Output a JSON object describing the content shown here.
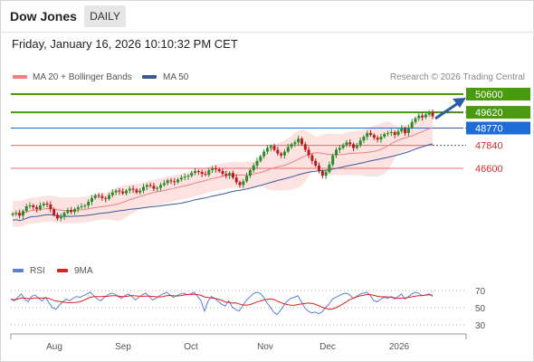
{
  "header": {
    "title": "Dow Jones",
    "timeframe_badge": "DAILY"
  },
  "timestamp": "Friday, January 16, 2026 10:10:32 PM CET",
  "legend": {
    "items": [
      {
        "label": "MA 20 + Bollinger Bands",
        "color": "#f08080"
      },
      {
        "label": "MA 50",
        "color": "#3b5998"
      }
    ],
    "credit": "Research © 2026 Trading Central"
  },
  "rsi_legend": {
    "items": [
      {
        "label": "RSI",
        "color": "#5b7fd6"
      },
      {
        "label": "9MA",
        "color": "#e02020"
      }
    ]
  },
  "colors": {
    "candle_up": "#2a8c2a",
    "candle_down": "#b81c1c",
    "resistance": "#4a9a10",
    "support": "#e07070",
    "pivot": "#1e6cd6",
    "ma20": "#f08080",
    "band_fill": "#fde2e2",
    "ma50": "#3b5998",
    "arrow": "#2b5aa8"
  },
  "chart_data": [
    {
      "type": "candlestick",
      "title": "Dow Jones",
      "timeframe": "DAILY",
      "x_ticks": [
        "Aug",
        "Sep",
        "Oct",
        "Nov",
        "Dec",
        "2026"
      ],
      "price_levels": [
        {
          "value": 50600,
          "label": "50600",
          "kind": "resistance"
        },
        {
          "value": 49620,
          "label": "49620",
          "kind": "resistance"
        },
        {
          "value": 48770,
          "label": "48770",
          "kind": "pivot"
        },
        {
          "value": 47840,
          "label": "47840",
          "kind": "support"
        },
        {
          "value": 46600,
          "label": "46600",
          "kind": "support"
        }
      ],
      "series": [
        {
          "name": "MA 20 + Bollinger Bands"
        },
        {
          "name": "MA 50"
        }
      ],
      "approx_close": [
        44150,
        44200,
        44050,
        44300,
        44550,
        44600,
        44500,
        44400,
        44600,
        44700,
        44650,
        44400,
        44100,
        43900,
        44000,
        44200,
        44350,
        44250,
        44400,
        44500,
        44550,
        44600,
        44800,
        45000,
        45150,
        45100,
        45000,
        44950,
        45150,
        45300,
        45400,
        45350,
        45250,
        45400,
        45500,
        45450,
        45300,
        45400,
        45600,
        45700,
        45650,
        45500,
        45550,
        45700,
        45800,
        45950,
        45900,
        45850,
        46000,
        46100,
        46150,
        46200,
        46350,
        46450,
        46400,
        46300,
        46250,
        46500,
        46600,
        46550,
        46450,
        46300,
        46200,
        46350,
        46100,
        45850,
        45700,
        45900,
        46200,
        46500,
        46750,
        47000,
        47250,
        47500,
        47700,
        47800,
        47600,
        47400,
        47300,
        47500,
        47750,
        47900,
        48000,
        48200,
        47900,
        47600,
        47300,
        47000,
        46750,
        46450,
        46200,
        46400,
        46800,
        47300,
        47600,
        47700,
        47850,
        48000,
        47900,
        47700,
        47850,
        48100,
        48300,
        48500,
        48400,
        48250,
        48150,
        48300,
        48450,
        48500,
        48550,
        48400,
        48600,
        48750,
        48500,
        48800,
        49100,
        49300,
        49450,
        49350,
        49500,
        49600,
        49400
      ],
      "rsi": {
        "name": "RSI",
        "levels": [
          70,
          50,
          30
        ],
        "values": [
          60,
          58,
          62,
          66,
          60,
          57,
          63,
          65,
          61,
          58,
          62,
          56,
          50,
          48,
          53,
          57,
          60,
          58,
          61,
          63,
          62,
          64,
          66,
          68,
          64,
          60,
          58,
          62,
          65,
          67,
          66,
          63,
          61,
          64,
          66,
          63,
          59,
          62,
          65,
          67,
          63,
          59,
          61,
          64,
          66,
          68,
          65,
          62,
          64,
          66,
          67,
          65,
          66,
          68,
          63,
          58,
          46,
          57,
          63,
          61,
          57,
          54,
          52,
          58,
          51,
          48,
          46,
          52,
          58,
          62,
          66,
          68,
          67,
          63,
          56,
          51,
          45,
          42,
          47,
          53,
          58,
          61,
          62,
          64,
          57,
          50,
          46,
          44,
          45,
          43,
          45,
          50,
          54,
          60,
          62,
          64,
          66,
          67,
          65,
          61,
          63,
          66,
          67,
          68,
          64,
          58,
          57,
          60,
          62,
          61,
          63,
          60,
          63,
          66,
          60,
          63,
          66,
          68,
          67,
          64,
          65,
          66,
          63
        ]
      }
    }
  ]
}
